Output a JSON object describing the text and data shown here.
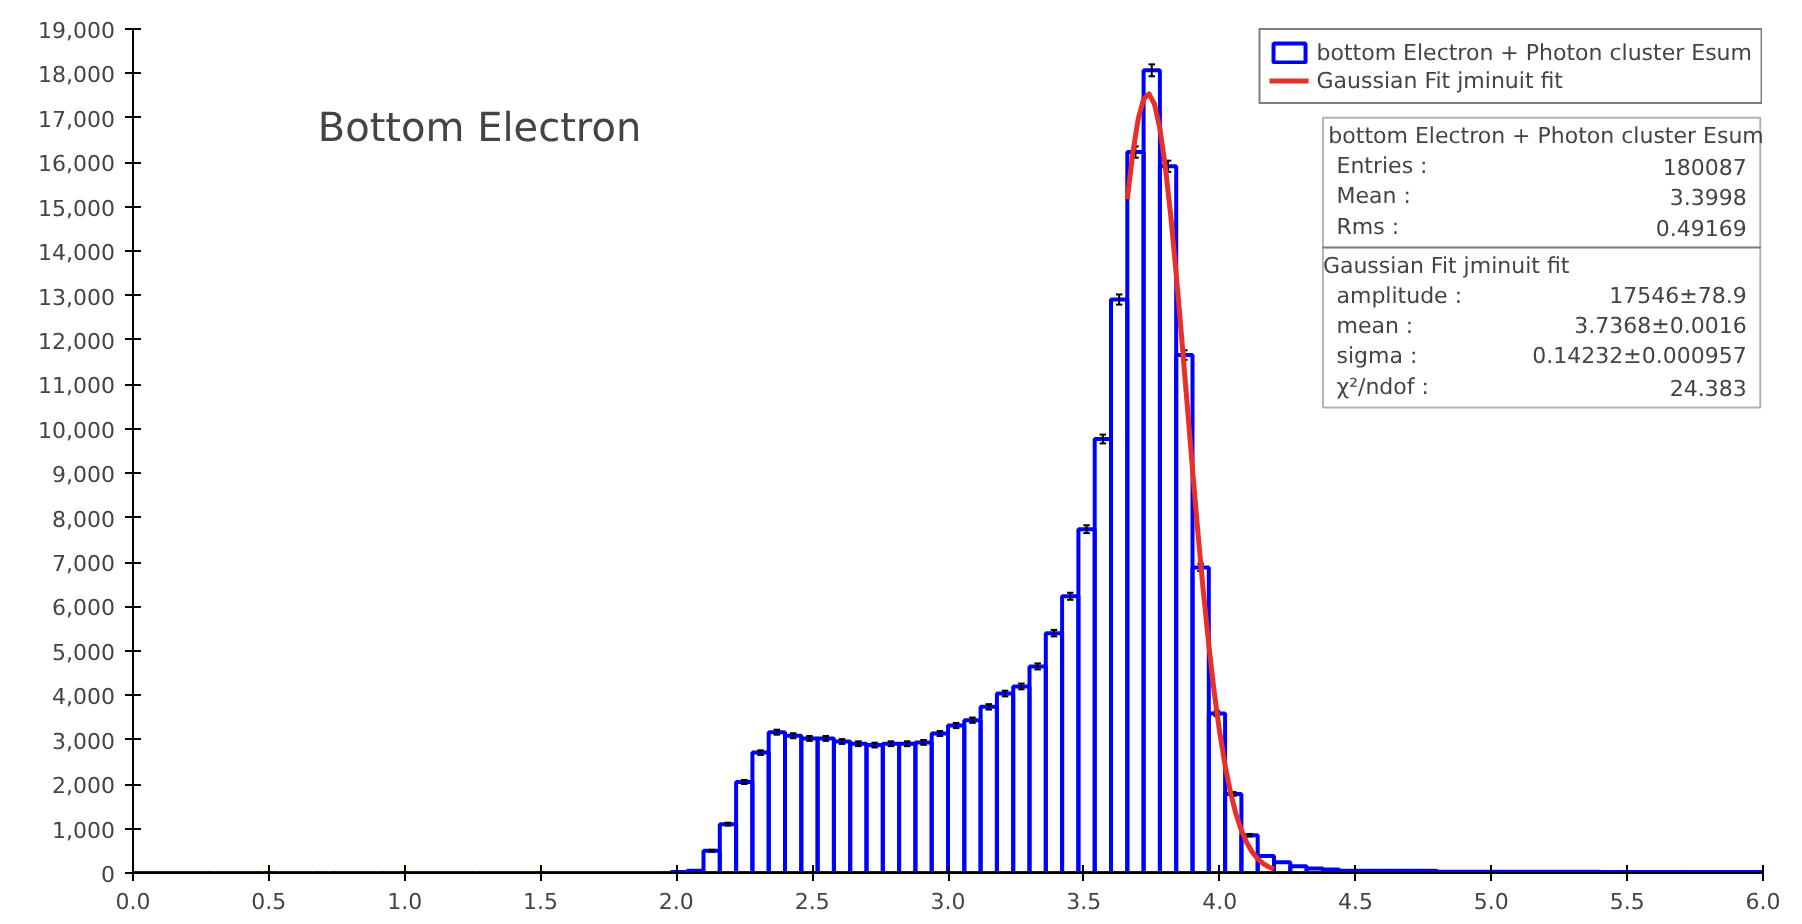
{
  "chart_data": {
    "type": "histogram",
    "title": "Bottom Electron",
    "bins": [
      0.0,
      0.06,
      0.12,
      0.18,
      0.24,
      0.3,
      0.36,
      0.42,
      0.48,
      0.54,
      0.6,
      0.66,
      0.72,
      0.78,
      0.84,
      0.9,
      0.96,
      1.02,
      1.08,
      1.14,
      1.2,
      1.26,
      1.32,
      1.38,
      1.44,
      1.5,
      1.56,
      1.62,
      1.68,
      1.74,
      1.8,
      1.86,
      1.92,
      1.98,
      2.04,
      2.1,
      2.16,
      2.22,
      2.28,
      2.34,
      2.4,
      2.46,
      2.52,
      2.58,
      2.64,
      2.7,
      2.76,
      2.82,
      2.88,
      2.94,
      3.0,
      3.06,
      3.12,
      3.18,
      3.24,
      3.3,
      3.36,
      3.42,
      3.48,
      3.54,
      3.6,
      3.66,
      3.72,
      3.78,
      3.84,
      3.9,
      3.96,
      4.02,
      4.08,
      4.14,
      4.2,
      4.26,
      4.32,
      4.38,
      4.44,
      4.5,
      4.56,
      4.62,
      4.68,
      4.74,
      4.8,
      4.86,
      4.92,
      4.98,
      5.04,
      5.1,
      5.16,
      5.22,
      5.28,
      5.34,
      5.4,
      5.46,
      5.52,
      5.58,
      5.64,
      5.7,
      5.76,
      5.82,
      5.88,
      5.94,
      6.0
    ],
    "series": [
      {
        "name": "bottom Electron + Photon cluster Esum",
        "color": "#0000ff",
        "values": [
          0,
          0,
          0,
          0,
          0,
          0,
          0,
          0,
          0,
          0,
          0,
          0,
          0,
          0,
          0,
          0,
          0,
          0,
          0,
          0,
          0,
          0,
          0,
          0,
          0,
          0,
          0,
          0,
          0,
          0,
          0,
          0,
          0,
          20,
          50,
          500,
          1100,
          2050,
          2710,
          3170,
          3090,
          3030,
          3030,
          2960,
          2910,
          2880,
          2910,
          2910,
          2940,
          3140,
          3320,
          3440,
          3740,
          4040,
          4200,
          4650,
          5400,
          6230,
          7740,
          9770,
          12910,
          16230,
          18070,
          15910,
          11660,
          6880,
          3590,
          1780,
          850,
          380,
          240,
          150,
          100,
          80,
          50,
          50,
          50,
          50,
          50,
          50,
          30,
          30,
          30,
          30,
          30,
          30,
          30,
          30,
          30,
          30,
          20,
          20,
          20,
          20,
          20,
          20,
          20,
          20,
          20,
          20
        ],
        "errors": [
          null,
          null,
          null,
          null,
          null,
          null,
          null,
          null,
          null,
          null,
          null,
          null,
          null,
          null,
          null,
          null,
          null,
          null,
          null,
          null,
          null,
          null,
          null,
          null,
          null,
          null,
          null,
          null,
          null,
          null,
          null,
          null,
          null,
          null,
          null,
          22,
          33,
          45,
          52,
          56,
          56,
          55,
          55,
          54,
          54,
          54,
          54,
          54,
          54,
          56,
          58,
          59,
          61,
          64,
          65,
          68,
          73,
          79,
          88,
          99,
          114,
          127,
          134,
          126,
          108,
          83,
          60,
          42,
          29,
          null,
          null,
          null,
          null,
          null,
          null,
          null,
          null,
          null,
          null,
          null,
          null,
          null,
          null,
          null,
          null,
          null,
          null,
          null,
          null,
          null,
          null,
          null,
          null,
          null,
          null,
          null,
          null,
          null,
          null,
          null
        ]
      },
      {
        "name": "Gaussian Fit jminuit fit",
        "type": "line",
        "color": "#e8302a",
        "x": [
          3.66,
          3.68,
          3.7,
          3.72,
          3.74,
          3.76,
          3.78,
          3.8,
          3.82,
          3.84,
          3.86,
          3.88,
          3.9,
          3.92,
          3.94,
          3.96,
          3.98,
          4.0,
          4.02,
          4.04,
          4.06,
          4.08,
          4.1,
          4.12,
          4.14,
          4.16,
          4.18,
          4.2
        ],
        "values": [
          15170,
          16200,
          16970,
          17420,
          17540,
          17310,
          16760,
          15900,
          14790,
          13490,
          12060,
          10580,
          9090,
          7660,
          6330,
          5130,
          4070,
          3170,
          2420,
          1810,
          1330,
          960,
          680,
          470,
          320,
          210,
          140,
          90
        ]
      }
    ],
    "xlim": [
      0,
      6
    ],
    "ylim": [
      0,
      19000
    ],
    "xticks": [
      {
        "value": 0,
        "label": "0.0"
      },
      {
        "value": 0.5,
        "label": "0.5"
      },
      {
        "value": 1,
        "label": "1.0"
      },
      {
        "value": 1.5,
        "label": "1.5"
      },
      {
        "value": 2,
        "label": "2.0"
      },
      {
        "value": 2.5,
        "label": "2.5"
      },
      {
        "value": 3,
        "label": "3.0"
      },
      {
        "value": 3.5,
        "label": "3.5"
      },
      {
        "value": 4,
        "label": "4.0"
      },
      {
        "value": 4.5,
        "label": "4.5"
      },
      {
        "value": 5,
        "label": "5.0"
      },
      {
        "value": 5.5,
        "label": "5.5"
      },
      {
        "value": 6,
        "label": "6.0"
      }
    ],
    "yticks": [
      0,
      {
        "value": 1000,
        "label": "1,000"
      },
      {
        "value": 2000,
        "label": "2,000"
      },
      {
        "value": 3000,
        "label": "3,000"
      },
      {
        "value": 4000,
        "label": "4,000"
      },
      {
        "value": 5000,
        "label": "5,000"
      },
      {
        "value": 6000,
        "label": "6,000"
      },
      {
        "value": 7000,
        "label": "7,000"
      },
      {
        "value": 8000,
        "label": "8,000"
      },
      {
        "value": 9000,
        "label": "9,000"
      },
      {
        "value": 10000,
        "label": "10,000"
      },
      {
        "value": 11000,
        "label": "11,000"
      },
      {
        "value": 12000,
        "label": "12,000"
      },
      {
        "value": 13000,
        "label": "13,000"
      },
      {
        "value": 14000,
        "label": "14,000"
      },
      {
        "value": 15000,
        "label": "15,000"
      },
      {
        "value": 16000,
        "label": "16,000"
      },
      {
        "value": 17000,
        "label": "17,000"
      },
      {
        "value": 18000,
        "label": "18,000"
      },
      {
        "value": 19000,
        "label": "19,000"
      }
    ],
    "grid": false,
    "legend": "top right",
    "annotations": [
      "bottom Electron + Photon cluster Esum",
      "Entries :",
      "180087",
      "Mean :",
      "3.3998",
      "Rms :",
      "0.49169",
      "Gaussian Fit jminuit fit",
      "amplitude :",
      "17546±78.9",
      "mean :",
      "3.7368±0.0016",
      "sigma :",
      "0.14232±0.000957",
      "χ²/ndof :",
      "24.383"
    ]
  }
}
